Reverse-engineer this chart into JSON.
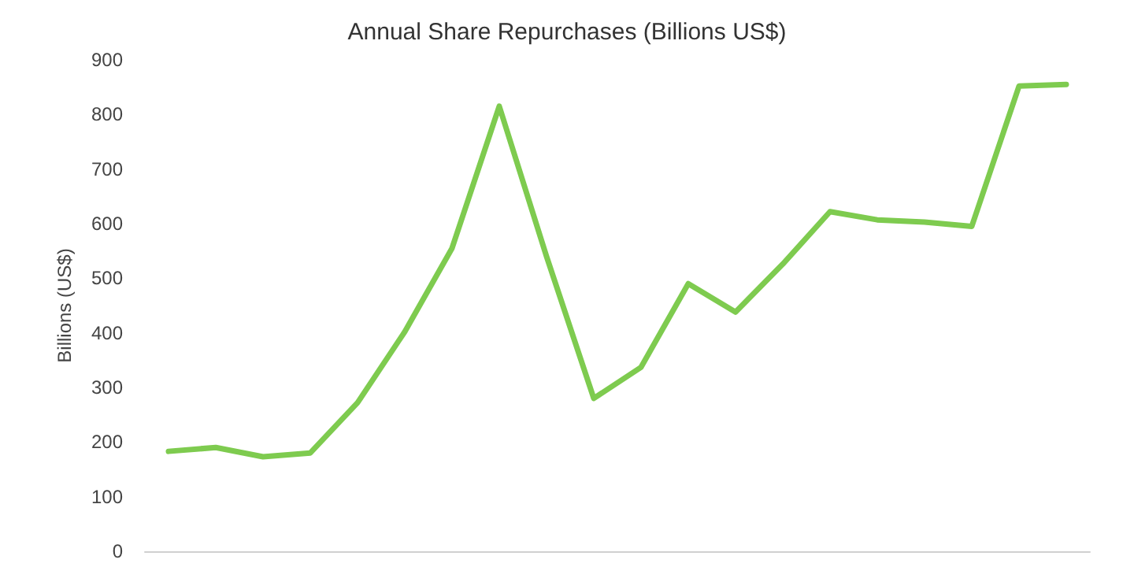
{
  "chart_data": {
    "type": "line",
    "title": "Annual Share Repurchases (Billions US$)",
    "ylabel": "Billions (US$)",
    "categories": [
      null,
      null,
      null,
      null,
      null,
      null,
      null,
      null,
      null,
      null,
      null,
      null,
      null,
      null,
      null,
      null,
      null,
      null,
      null,
      null
    ],
    "series": [
      {
        "color": "#7ecb4f",
        "values": [
          183,
          190,
          173,
          180,
          272,
          402,
          555,
          815,
          540,
          280,
          337,
          490,
          438,
          526,
          622,
          607,
          603,
          595,
          852,
          855
        ]
      }
    ],
    "ylim": [
      0,
      900
    ],
    "yticks": [
      0,
      100,
      200,
      300,
      400,
      500,
      600,
      700,
      800,
      900
    ],
    "grid": false,
    "marker": "none",
    "line_style": "solid"
  }
}
